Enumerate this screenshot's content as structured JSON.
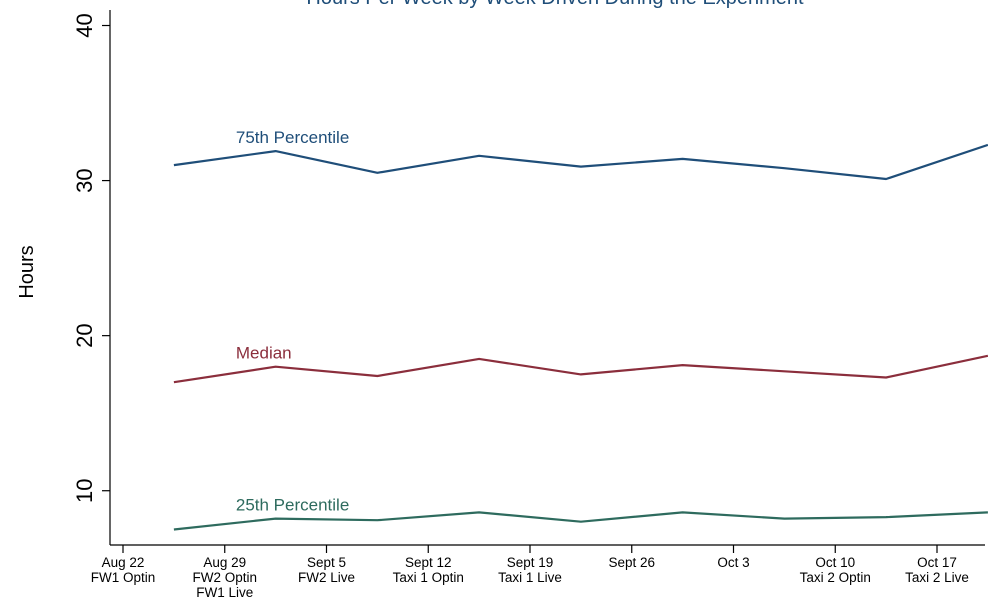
{
  "chart_data": {
    "type": "line",
    "title": "Hours Per Week by Week Driven During the Experiment",
    "ylabel": "Hours",
    "xlabel": "",
    "ylim": [
      6.5,
      41
    ],
    "yticks": [
      10,
      20,
      30,
      40
    ],
    "grid": false,
    "x_ticks": [
      {
        "date": "Aug 22",
        "lines": [
          "Aug 22",
          "FW1 Optin"
        ]
      },
      {
        "date": "Aug 29",
        "lines": [
          "Aug 29",
          "FW2 Optin",
          "FW1 Live"
        ]
      },
      {
        "date": "Sept 5",
        "lines": [
          "Sept 5",
          "FW2 Live"
        ]
      },
      {
        "date": "Sept 12",
        "lines": [
          "Sept 12",
          "Taxi 1 Optin"
        ]
      },
      {
        "date": "Sept 19",
        "lines": [
          "Sept 19",
          "Taxi 1 Live"
        ]
      },
      {
        "date": "Sept 26",
        "lines": [
          "Sept 26"
        ]
      },
      {
        "date": "Oct 3",
        "lines": [
          "Oct 3"
        ]
      },
      {
        "date": "Oct 10",
        "lines": [
          "Oct 10",
          "Taxi 2 Optin"
        ]
      },
      {
        "date": "Oct 17",
        "lines": [
          "Oct 17",
          "Taxi 2 Live"
        ]
      }
    ],
    "x": [
      "Aug 25",
      "Sept 1",
      "Sept 8",
      "Sept 15",
      "Sept 22",
      "Sept 29",
      "Oct 6",
      "Oct 13",
      "Oct 20"
    ],
    "series": [
      {
        "name": "75th Percentile",
        "color": "#1f4e79",
        "values": [
          31.0,
          31.9,
          30.5,
          31.6,
          30.9,
          31.4,
          30.8,
          30.1,
          32.3
        ]
      },
      {
        "name": "Median",
        "color": "#8b2e3c",
        "values": [
          17.0,
          18.0,
          17.4,
          18.5,
          17.5,
          18.1,
          17.7,
          17.3,
          18.7
        ]
      },
      {
        "name": "25th Percentile",
        "color": "#2e6b5e",
        "values": [
          7.5,
          8.2,
          8.1,
          8.6,
          8.0,
          8.6,
          8.2,
          8.3,
          8.6
        ]
      }
    ]
  }
}
